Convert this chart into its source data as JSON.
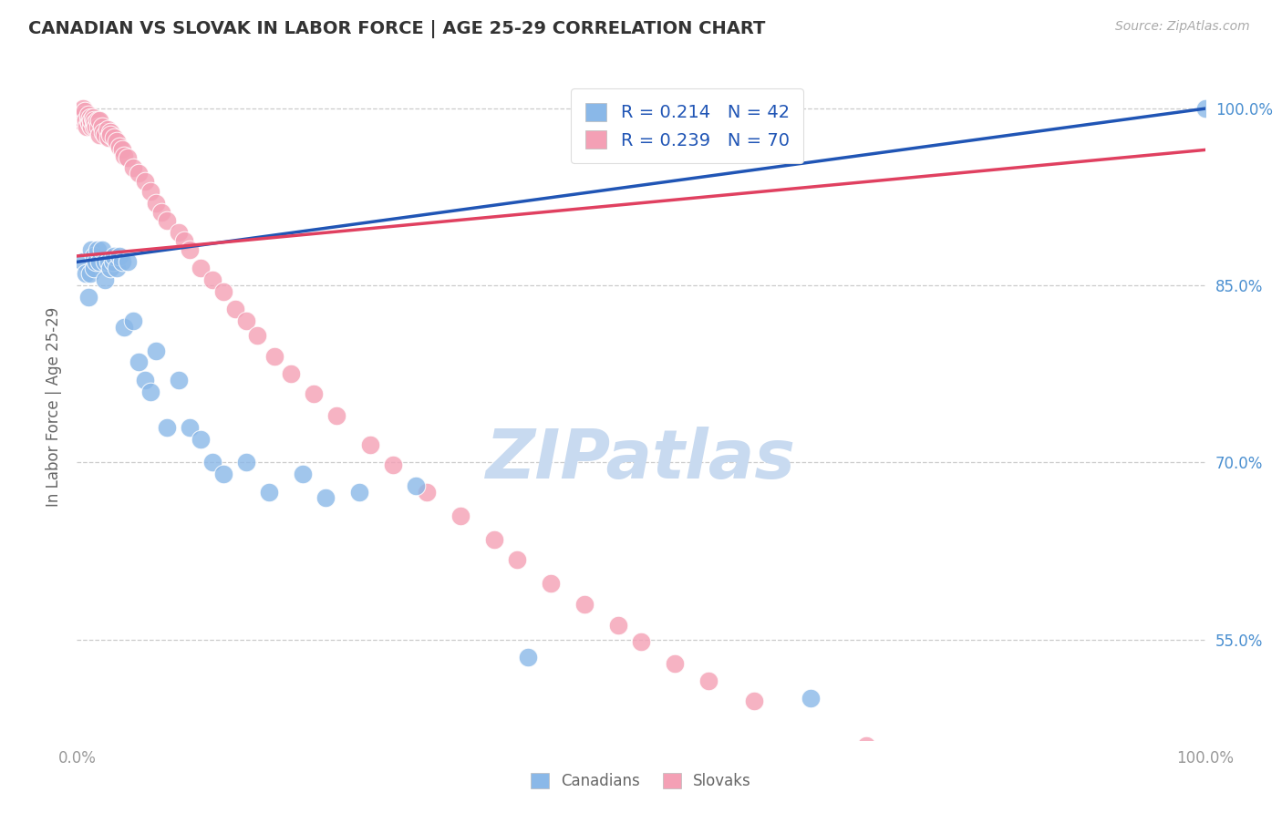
{
  "title": "CANADIAN VS SLOVAK IN LABOR FORCE | AGE 25-29 CORRELATION CHART",
  "source_text": "Source: ZipAtlas.com",
  "ylabel": "In Labor Force | Age 25-29",
  "xlim": [
    0.0,
    1.0
  ],
  "ylim": [
    0.465,
    1.03
  ],
  "yticks": [
    0.55,
    0.7,
    0.85,
    1.0
  ],
  "ytick_labels": [
    "55.0%",
    "70.0%",
    "85.0%",
    "100.0%"
  ],
  "xtick_labels": [
    "0.0%",
    "100.0%"
  ],
  "xticks": [
    0.0,
    1.0
  ],
  "R_canadian": 0.214,
  "N_canadian": 42,
  "R_slovak": 0.239,
  "N_slovak": 70,
  "canadian_color": "#8ab8e8",
  "slovak_color": "#f4a0b5",
  "canadian_line_color": "#2055b5",
  "slovak_line_color": "#e04060",
  "background_color": "#ffffff",
  "grid_color": "#cccccc",
  "watermark_color": "#c8daf0",
  "tick_color_y": "#4a8fd0",
  "tick_color_x": "#999999",
  "canadian_x": [
    0.005,
    0.008,
    0.01,
    0.012,
    0.013,
    0.015,
    0.015,
    0.017,
    0.018,
    0.02,
    0.022,
    0.025,
    0.025,
    0.028,
    0.03,
    0.032,
    0.033,
    0.035,
    0.038,
    0.04,
    0.042,
    0.045,
    0.05,
    0.055,
    0.06,
    0.065,
    0.07,
    0.08,
    0.09,
    0.1,
    0.11,
    0.12,
    0.13,
    0.15,
    0.17,
    0.2,
    0.22,
    0.25,
    0.3,
    0.4,
    0.65,
    1.0
  ],
  "canadian_y": [
    0.87,
    0.86,
    0.84,
    0.86,
    0.88,
    0.875,
    0.865,
    0.87,
    0.88,
    0.87,
    0.88,
    0.87,
    0.855,
    0.87,
    0.865,
    0.87,
    0.875,
    0.865,
    0.875,
    0.87,
    0.815,
    0.87,
    0.82,
    0.785,
    0.77,
    0.76,
    0.795,
    0.73,
    0.77,
    0.73,
    0.72,
    0.7,
    0.69,
    0.7,
    0.675,
    0.69,
    0.67,
    0.675,
    0.68,
    0.535,
    0.5,
    1.0
  ],
  "slovak_x": [
    0.003,
    0.004,
    0.005,
    0.006,
    0.006,
    0.007,
    0.008,
    0.009,
    0.01,
    0.01,
    0.011,
    0.012,
    0.013,
    0.013,
    0.014,
    0.015,
    0.015,
    0.016,
    0.017,
    0.018,
    0.019,
    0.02,
    0.02,
    0.022,
    0.023,
    0.025,
    0.027,
    0.028,
    0.03,
    0.03,
    0.033,
    0.035,
    0.038,
    0.04,
    0.042,
    0.045,
    0.05,
    0.055,
    0.06,
    0.065,
    0.07,
    0.075,
    0.08,
    0.09,
    0.095,
    0.1,
    0.11,
    0.12,
    0.13,
    0.14,
    0.15,
    0.16,
    0.175,
    0.19,
    0.21,
    0.23,
    0.26,
    0.28,
    0.31,
    0.34,
    0.37,
    0.39,
    0.42,
    0.45,
    0.48,
    0.5,
    0.53,
    0.56,
    0.6,
    0.7
  ],
  "slovak_y": [
    0.99,
    0.995,
    1.0,
    0.99,
    0.995,
    0.998,
    0.99,
    0.985,
    0.99,
    0.995,
    0.988,
    0.992,
    0.985,
    0.99,
    0.992,
    0.985,
    0.99,
    0.988,
    0.985,
    0.99,
    0.985,
    0.978,
    0.99,
    0.985,
    0.98,
    0.978,
    0.982,
    0.975,
    0.98,
    0.978,
    0.975,
    0.972,
    0.968,
    0.965,
    0.96,
    0.958,
    0.95,
    0.945,
    0.938,
    0.93,
    0.92,
    0.912,
    0.905,
    0.895,
    0.888,
    0.88,
    0.865,
    0.855,
    0.845,
    0.83,
    0.82,
    0.808,
    0.79,
    0.775,
    0.758,
    0.74,
    0.715,
    0.698,
    0.675,
    0.655,
    0.635,
    0.618,
    0.598,
    0.58,
    0.562,
    0.548,
    0.53,
    0.515,
    0.498,
    0.46
  ]
}
